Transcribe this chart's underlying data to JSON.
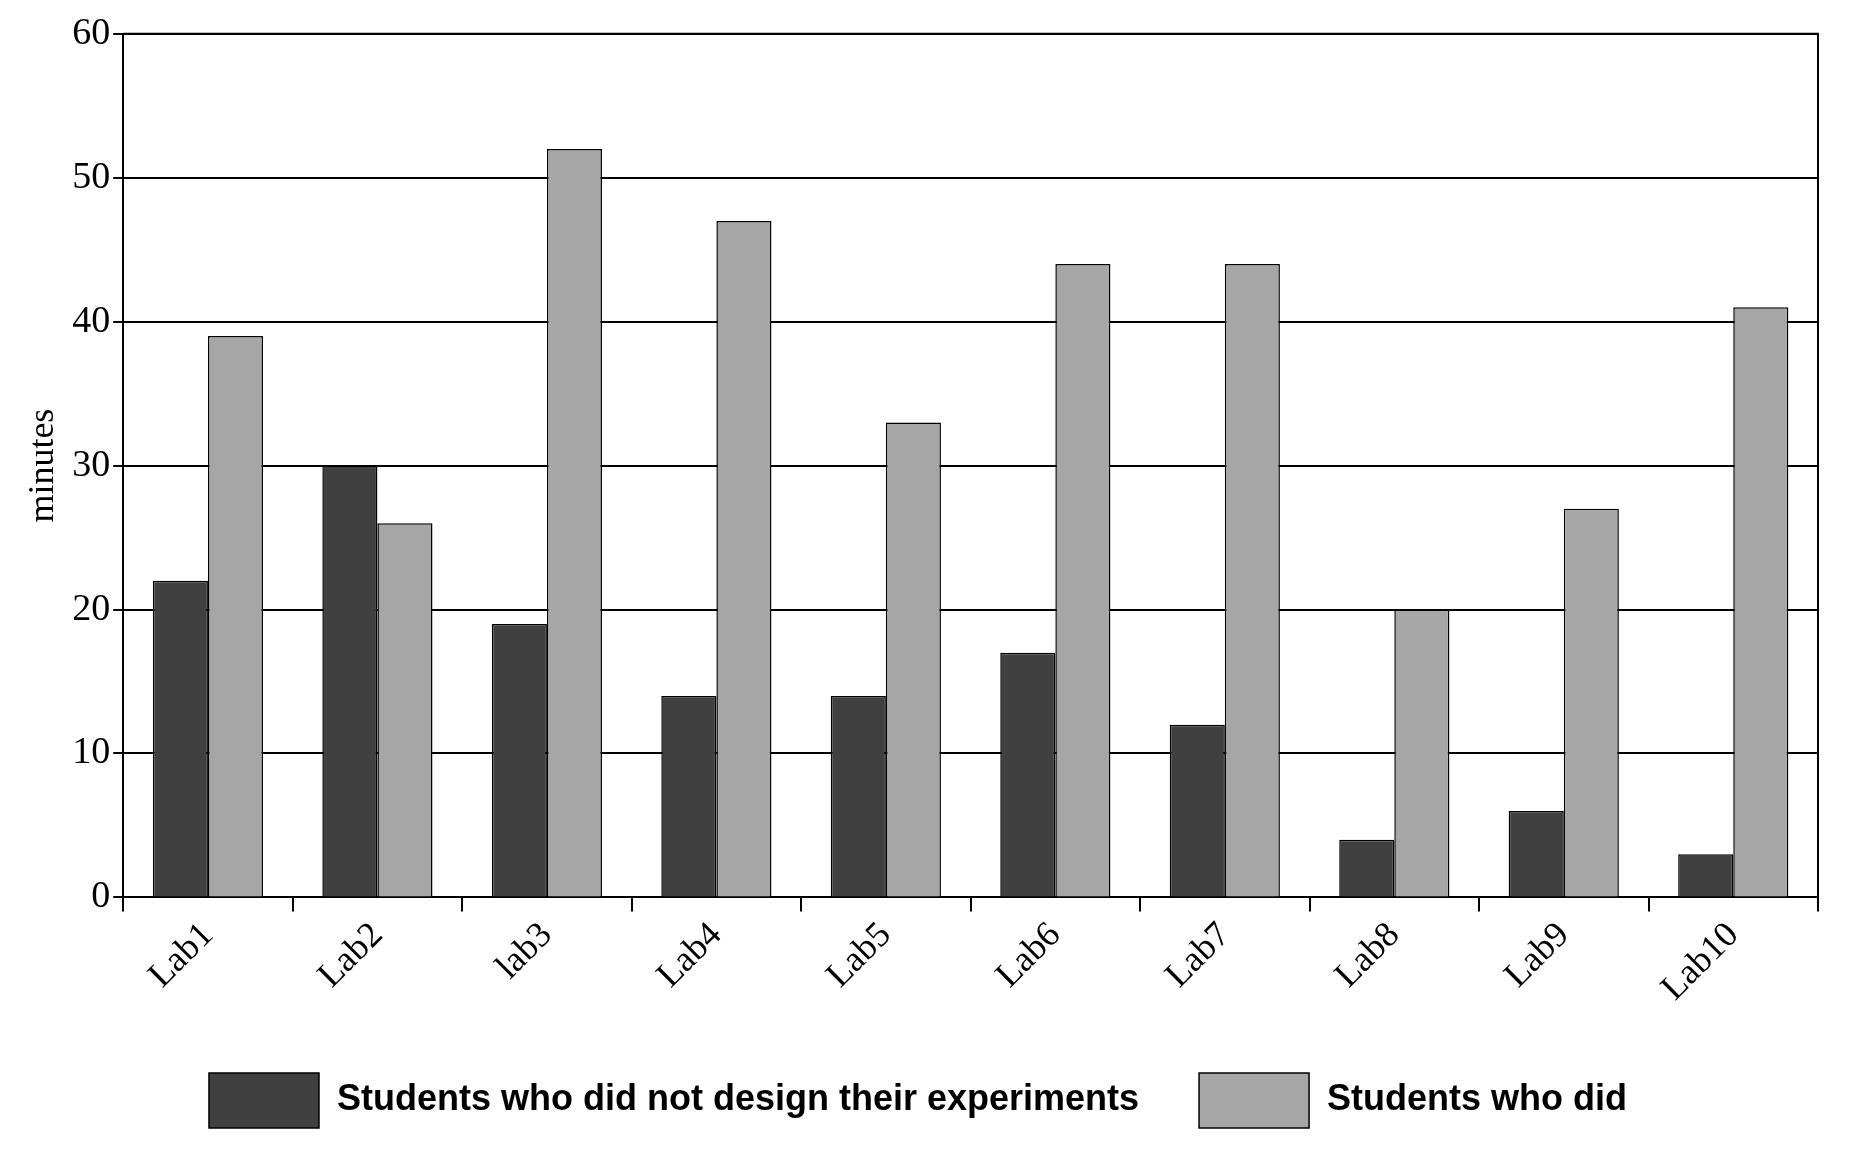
{
  "chart_data": {
    "type": "bar",
    "ylabel": "minutes",
    "categories": [
      "Lab1",
      "Lab2",
      "lab3",
      "Lab4",
      "Lab5",
      "Lab6",
      "Lab7",
      "Lab8",
      "Lab9",
      "Lab10"
    ],
    "series": [
      {
        "name": "Students who did not design their experiments",
        "color": "#404040",
        "values": [
          22,
          30,
          19,
          14,
          14,
          17,
          12,
          4,
          6,
          3
        ]
      },
      {
        "name": "Students who did",
        "color": "#a6a6a6",
        "values": [
          39,
          26,
          52,
          47,
          33,
          44,
          44,
          20,
          27,
          41
        ]
      }
    ],
    "ylim": [
      0,
      60
    ],
    "yticks": [
      0,
      10,
      20,
      30,
      40,
      50,
      60
    ],
    "grid": "y",
    "legend": "bottom"
  }
}
